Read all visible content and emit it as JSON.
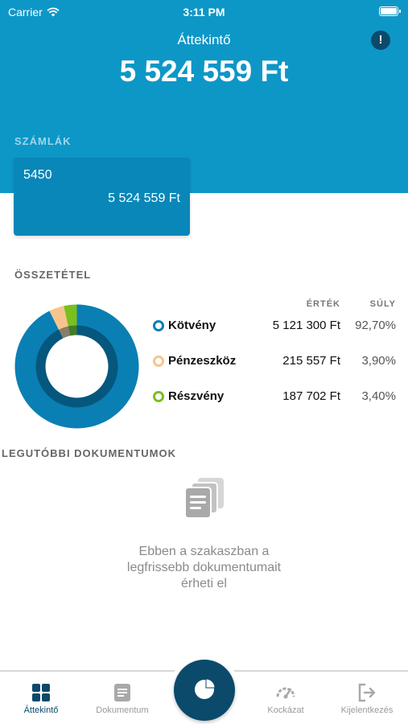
{
  "status_bar": {
    "carrier": "Carrier",
    "time": "3:11 PM"
  },
  "header": {
    "title": "Áttekintő",
    "total_amount": "5 524 559 Ft",
    "alert_glyph": "!"
  },
  "accounts": {
    "label": "SZÁMLÁK",
    "items": [
      {
        "number": "5450",
        "balance": "5 524 559 Ft"
      }
    ]
  },
  "composition": {
    "label": "ÖSSZETÉTEL",
    "col_value": "ÉRTÉK",
    "col_weight": "SÚLY",
    "items": [
      {
        "name": "Kötvény",
        "value": "5 121 300 Ft",
        "weight": "92,70%",
        "weight_fraction": 0.927,
        "color": "#0a7fb3"
      },
      {
        "name": "Pénzeszköz",
        "value": "215 557 Ft",
        "weight": "3,90%",
        "weight_fraction": 0.039,
        "color": "#f7c48d"
      },
      {
        "name": "Részvény",
        "value": "187 702 Ft",
        "weight": "3,40%",
        "weight_fraction": 0.034,
        "color": "#7abf1e"
      }
    ]
  },
  "documents": {
    "label": "LEGUTÓBBI DOKUMENTUMOK",
    "empty_line1": "Ebben a szakaszban a",
    "empty_line2": "legfrissebb dokumentumait",
    "empty_line3": "érheti el",
    "icon": "documents-stack-icon"
  },
  "tabbar": {
    "items": [
      {
        "label": "Áttekintő",
        "icon": "dashboard-icon",
        "active": true
      },
      {
        "label": "Dokumentum",
        "icon": "document-icon",
        "active": false
      },
      {
        "label": "",
        "icon": "pie-chart-icon",
        "active": false
      },
      {
        "label": "Kockázat",
        "icon": "gauge-icon",
        "active": false
      },
      {
        "label": "Kijelentkezés",
        "icon": "logout-icon",
        "active": false
      }
    ]
  },
  "colors": {
    "header_bg": "#0d97c7",
    "card_bg": "#0887b8",
    "dark_accent": "#0b4a6b"
  }
}
